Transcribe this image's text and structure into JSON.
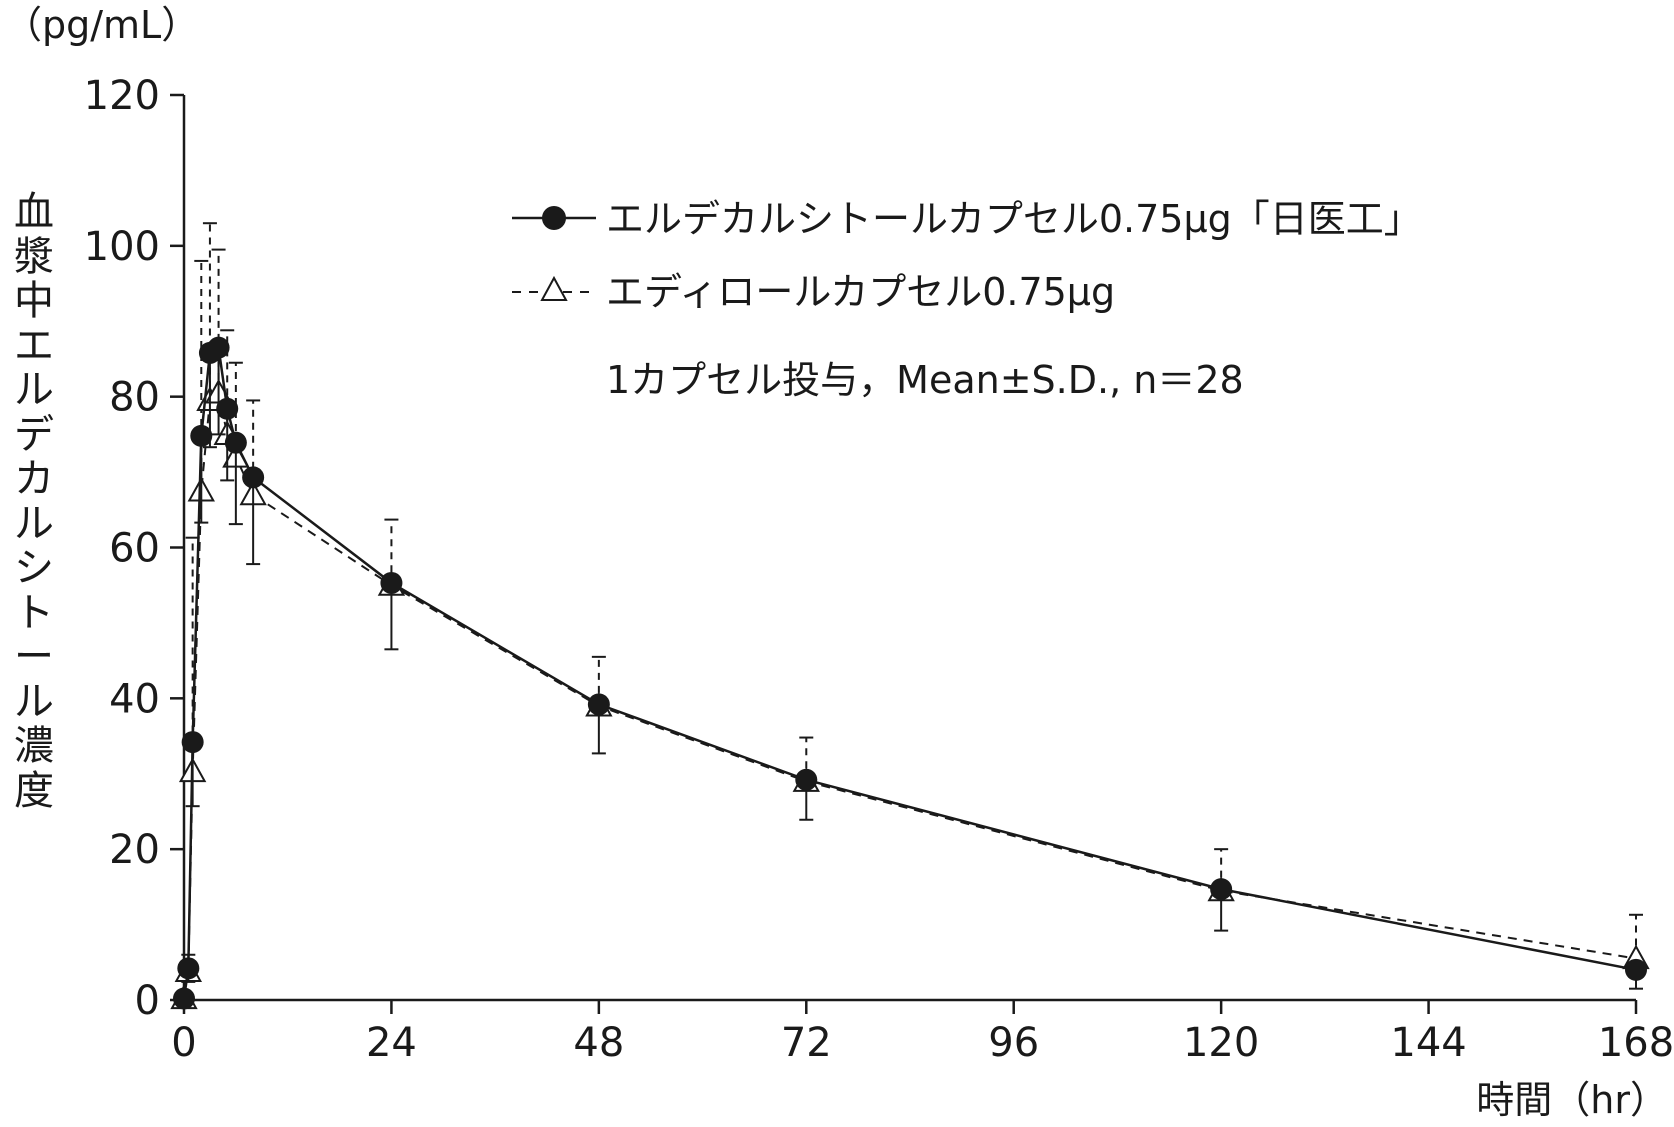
{
  "chart_data": {
    "type": "line",
    "unit_label": "（pg/mL）",
    "ylabel": "血漿中エルデカルシトール濃度",
    "xlabel": "時間（hr）",
    "xlim": [
      0,
      168
    ],
    "ylim": [
      0,
      120
    ],
    "x_ticks": [
      0,
      24,
      48,
      72,
      96,
      120,
      144,
      168
    ],
    "y_ticks": [
      0,
      20,
      40,
      60,
      80,
      100,
      120
    ],
    "legend_position": "top-right",
    "note": "1カプセル投与，Mean±S.D., n＝28",
    "series": [
      {
        "name": "エルデカルシトールカプセル0.75μg「日医工」",
        "marker": "filled-circle",
        "line_style": "solid",
        "x": [
          0,
          0.5,
          1,
          2,
          3,
          4,
          5,
          6,
          8,
          24,
          48,
          72,
          120,
          168
        ],
        "y": [
          0.2,
          4.2,
          34.2,
          74.8,
          85.8,
          86.5,
          78.4,
          73.9,
          69.3,
          55.3,
          39.2,
          29.2,
          14.7,
          4.0
        ],
        "sd": [
          0,
          1.8,
          8.5,
          11.5,
          12.5,
          11.5,
          9.5,
          10.8,
          11.5,
          8.8,
          6.5,
          5.3,
          5.5,
          2.5
        ],
        "sd_direction": "down"
      },
      {
        "name": "エディロールカプセル0.75μg",
        "marker": "open-triangle",
        "line_style": "dashed",
        "x": [
          0,
          0.5,
          1,
          2,
          3,
          4,
          5,
          6,
          8,
          24,
          48,
          72,
          120,
          168
        ],
        "y": [
          0.2,
          3.8,
          30.3,
          67.5,
          79.5,
          80.5,
          75.0,
          72.0,
          67.0,
          55.0,
          39.0,
          29.0,
          14.5,
          5.5
        ],
        "sd": [
          0,
          2.2,
          31.0,
          30.5,
          23.5,
          19.0,
          13.8,
          12.5,
          12.5,
          8.7,
          6.5,
          5.8,
          5.5,
          5.8
        ],
        "sd_direction": "up"
      }
    ]
  },
  "colors": {
    "ink": "#1a1a1a",
    "background": "#ffffff"
  }
}
